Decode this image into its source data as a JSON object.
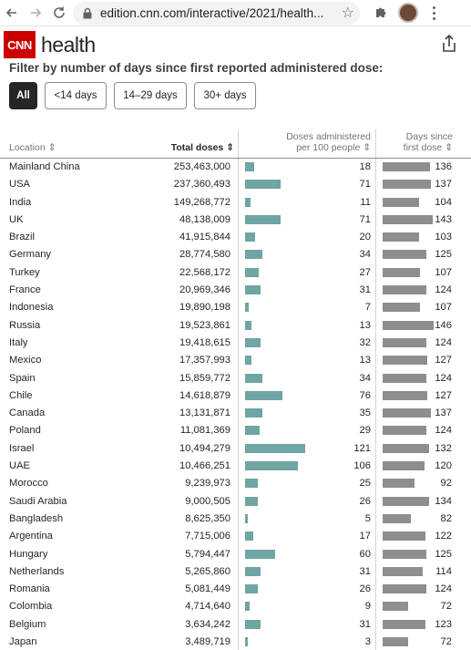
{
  "browser": {
    "url": "edition.cnn.com/interactive/2021/health..."
  },
  "header": {
    "logo_text": "CNN",
    "section": "health"
  },
  "filter": {
    "title": "Filter by number of days since first reported administered dose:",
    "options": [
      "All",
      "<14 days",
      "14–29 days",
      "30+ days"
    ],
    "selected": "All"
  },
  "table": {
    "columns": {
      "location": "Location",
      "total": "Total doses",
      "per100_line1": "Doses administered",
      "per100_line2": "per 100 people",
      "days_line1": "Days since",
      "days_line2": "first dose"
    },
    "rows": [
      {
        "location": "Mainland China",
        "total": "253,463,000",
        "per100": 18,
        "days": 136
      },
      {
        "location": "USA",
        "total": "237,360,493",
        "per100": 71,
        "days": 137
      },
      {
        "location": "India",
        "total": "149,268,772",
        "per100": 11,
        "days": 104
      },
      {
        "location": "UK",
        "total": "48,138,009",
        "per100": 71,
        "days": 143
      },
      {
        "location": "Brazil",
        "total": "41,915,844",
        "per100": 20,
        "days": 103
      },
      {
        "location": "Germany",
        "total": "28,774,580",
        "per100": 34,
        "days": 125
      },
      {
        "location": "Turkey",
        "total": "22,568,172",
        "per100": 27,
        "days": 107
      },
      {
        "location": "France",
        "total": "20,969,346",
        "per100": 31,
        "days": 124
      },
      {
        "location": "Indonesia",
        "total": "19,890,198",
        "per100": 7,
        "days": 107
      },
      {
        "location": "Russia",
        "total": "19,523,861",
        "per100": 13,
        "days": 146
      },
      {
        "location": "Italy",
        "total": "19,418,615",
        "per100": 32,
        "days": 124
      },
      {
        "location": "Mexico",
        "total": "17,357,993",
        "per100": 13,
        "days": 127
      },
      {
        "location": "Spain",
        "total": "15,859,772",
        "per100": 34,
        "days": 124
      },
      {
        "location": "Chile",
        "total": "14,618,879",
        "per100": 76,
        "days": 127
      },
      {
        "location": "Canada",
        "total": "13,131,871",
        "per100": 35,
        "days": 137
      },
      {
        "location": "Poland",
        "total": "11,081,369",
        "per100": 29,
        "days": 124
      },
      {
        "location": "Israel",
        "total": "10,494,279",
        "per100": 121,
        "days": 132
      },
      {
        "location": "UAE",
        "total": "10,466,251",
        "per100": 106,
        "days": 120
      },
      {
        "location": "Morocco",
        "total": "9,239,973",
        "per100": 25,
        "days": 92
      },
      {
        "location": "Saudi Arabia",
        "total": "9,000,505",
        "per100": 26,
        "days": 134
      },
      {
        "location": "Bangladesh",
        "total": "8,625,350",
        "per100": 5,
        "days": 82
      },
      {
        "location": "Argentina",
        "total": "7,715,006",
        "per100": 17,
        "days": 122
      },
      {
        "location": "Hungary",
        "total": "5,794,447",
        "per100": 60,
        "days": 125
      },
      {
        "location": "Netherlands",
        "total": "5,265,860",
        "per100": 31,
        "days": 114
      },
      {
        "location": "Romania",
        "total": "5,081,449",
        "per100": 26,
        "days": 124
      },
      {
        "location": "Colombia",
        "total": "4,714,640",
        "per100": 9,
        "days": 72
      },
      {
        "location": "Belgium",
        "total": "3,634,242",
        "per100": 31,
        "days": 123
      },
      {
        "location": "Japan",
        "total": "3,489,719",
        "per100": 3,
        "days": 72
      }
    ]
  },
  "colors": {
    "cnn_red": "#cc0000",
    "bar_per100": "#6fa5a3",
    "bar_days": "#8e8e8e"
  },
  "icons": [
    "back-arrow-icon",
    "forward-arrow-icon",
    "reload-icon",
    "lock-icon",
    "star-icon",
    "puzzle-icon",
    "share-icon",
    "sort-icon"
  ]
}
